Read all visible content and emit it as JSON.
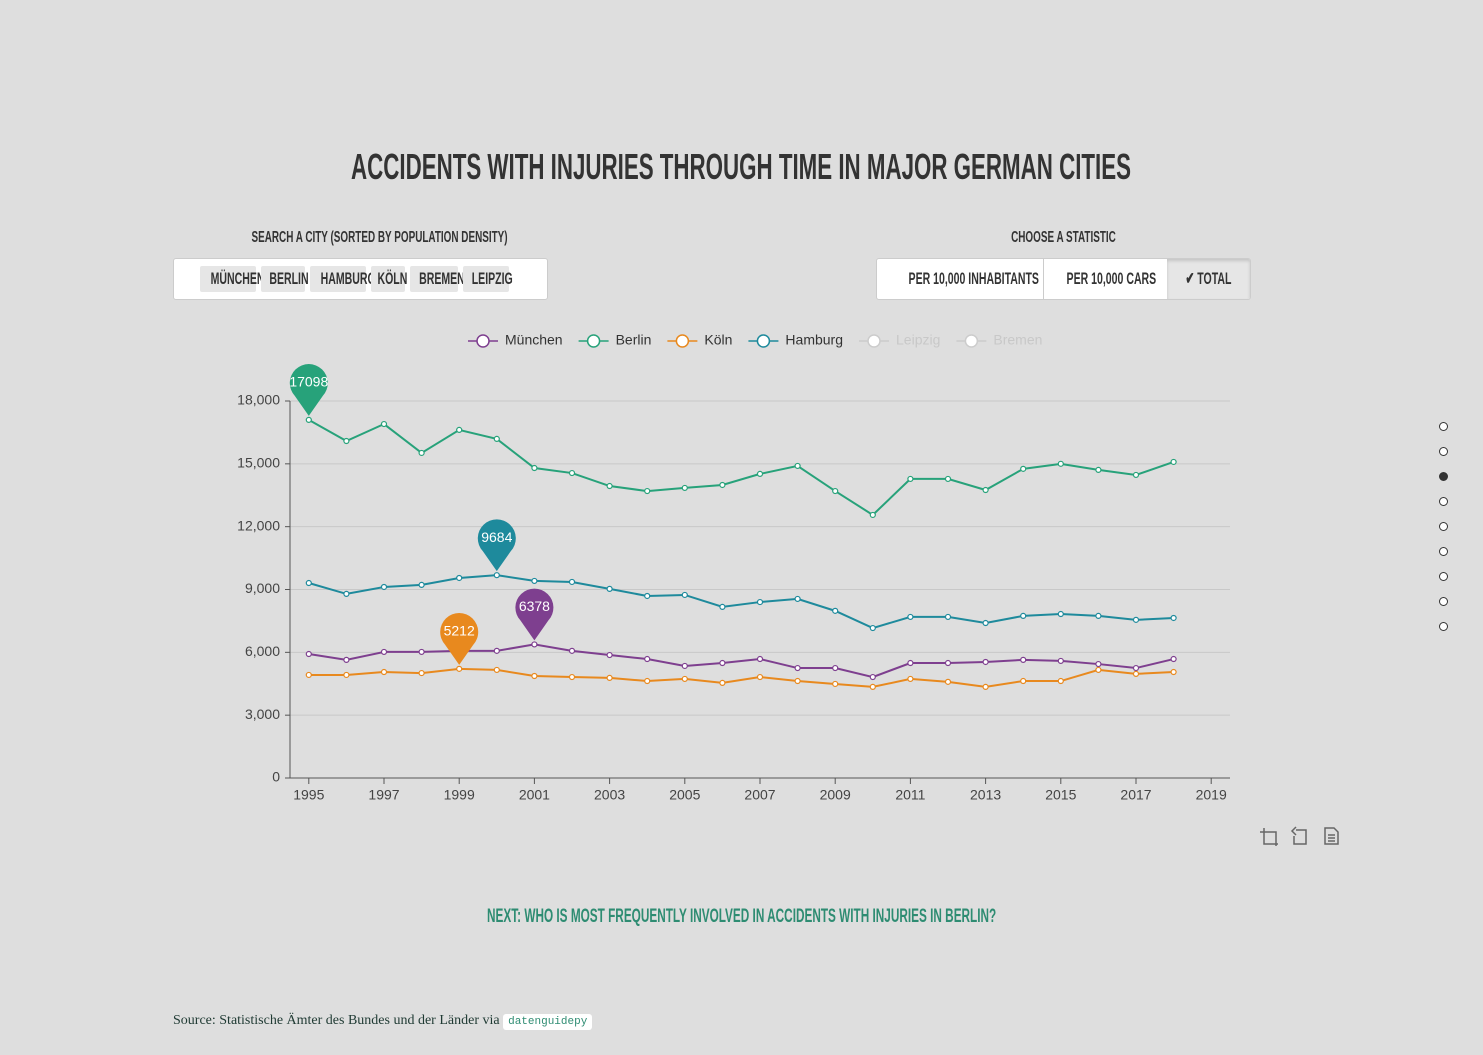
{
  "title": "ACCIDENTS WITH INJURIES THROUGH TIME IN MAJOR GERMAN CITIES",
  "city_search": {
    "label": "SEARCH A CITY (SORTED BY POPULATION DENSITY)",
    "cities": [
      "MÜNCHEN",
      "BERLIN",
      "HAMBURG",
      "KÖLN",
      "BREMEN",
      "LEIPZIG"
    ]
  },
  "statistic": {
    "label": "CHOOSE A STATISTIC",
    "options": [
      "PER 10,000 INHABITANTS",
      "PER 10,000 CARS",
      "TOTAL"
    ],
    "selected": 2
  },
  "chart_data": {
    "type": "line",
    "x": [
      1995,
      1996,
      1997,
      1998,
      1999,
      2000,
      2001,
      2002,
      2003,
      2004,
      2005,
      2006,
      2007,
      2008,
      2009,
      2010,
      2011,
      2012,
      2013,
      2014,
      2015,
      2016,
      2017,
      2018
    ],
    "series": [
      {
        "name": "München",
        "color": "#7e3f8f",
        "mark_point": "max",
        "values": [
          5920,
          5640,
          6020,
          6020,
          6070,
          6070,
          6378,
          6070,
          5870,
          5680,
          5350,
          5490,
          5680,
          5250,
          5250,
          4820,
          5490,
          5490,
          5540,
          5640,
          5590,
          5440,
          5250,
          5680
        ]
      },
      {
        "name": "Berlin",
        "color": "#27a27a",
        "mark_point": "max",
        "values": [
          17098,
          16090,
          16900,
          15520,
          16620,
          16190,
          14800,
          14560,
          13940,
          13700,
          13850,
          13990,
          14520,
          14900,
          13700,
          12560,
          14280,
          14280,
          13750,
          14760,
          15000,
          14710,
          14470,
          15090
        ]
      },
      {
        "name": "Köln",
        "color": "#e8891e",
        "mark_point": "max",
        "values": [
          4920,
          4920,
          5060,
          5010,
          5212,
          5160,
          4870,
          4820,
          4780,
          4630,
          4730,
          4540,
          4820,
          4630,
          4490,
          4350,
          4730,
          4590,
          4350,
          4630,
          4630,
          5160,
          4970,
          5060
        ]
      },
      {
        "name": "Hamburg",
        "color": "#1e8a9c",
        "mark_point": "max",
        "values": [
          9310,
          8790,
          9120,
          9220,
          9550,
          9684,
          9410,
          9360,
          9030,
          8690,
          8740,
          8170,
          8400,
          8550,
          7980,
          7160,
          7690,
          7690,
          7400,
          7740,
          7830,
          7740,
          7550,
          7640
        ]
      }
    ],
    "legend_inactive": [
      "Leipzig",
      "Bremen"
    ],
    "xlim": [
      1994.5,
      2019.5
    ],
    "xticks": [
      1995,
      1997,
      1999,
      2001,
      2003,
      2005,
      2007,
      2009,
      2011,
      2013,
      2015,
      2017,
      2019
    ],
    "ylim": [
      0,
      18000
    ],
    "yticks": [
      0,
      {
        "value": 3000,
        "label": "3,000"
      },
      {
        "value": 6000,
        "label": "6,000"
      },
      {
        "value": 9000,
        "label": "9,000"
      },
      {
        "value": 12000,
        "label": "12,000"
      },
      {
        "value": 15000,
        "label": "15,000"
      },
      {
        "value": 18000,
        "label": "18,000"
      }
    ],
    "grid": true
  },
  "next_link": "NEXT: WHO IS MOST FREQUENTLY INVOLVED IN ACCIDENTS WITH INJURIES IN BERLIN?",
  "source": {
    "text": "Source: Statistische Ämter des Bundes und der Länder via",
    "code": "datenguidepy"
  }
}
